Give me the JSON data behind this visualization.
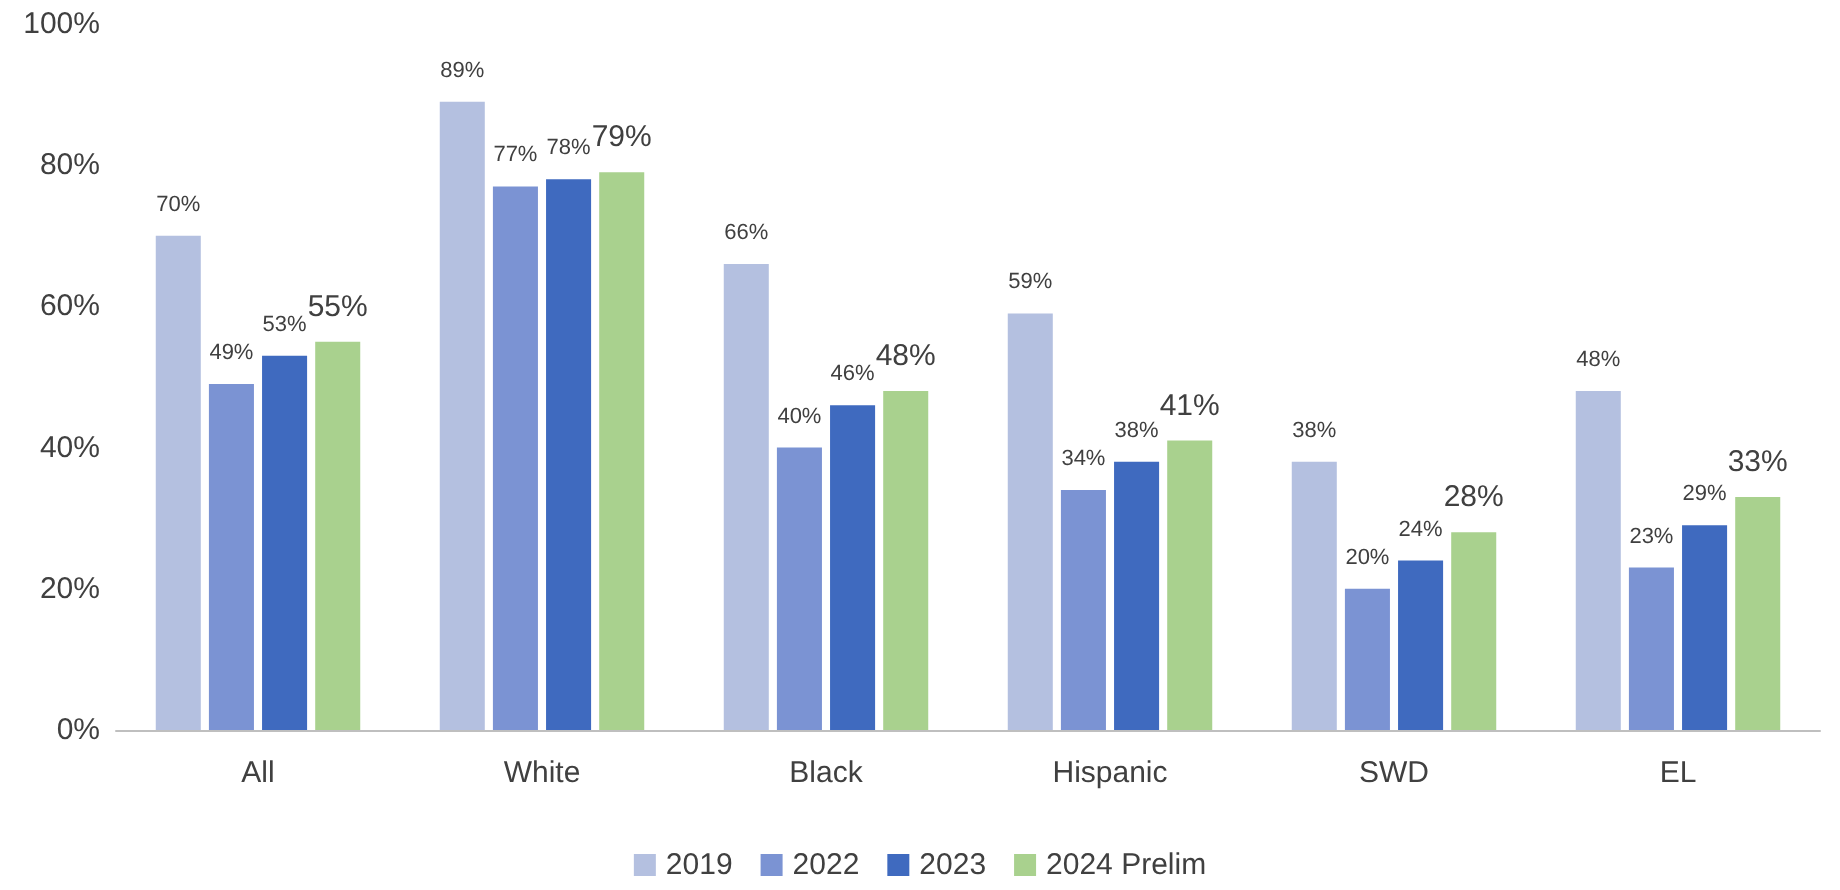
{
  "chart_data": {
    "type": "bar",
    "categories": [
      "All",
      "White",
      "Black",
      "Hispanic",
      "SWD",
      "EL"
    ],
    "series": [
      {
        "name": "2019",
        "color": "#b4c0e0",
        "values": [
          70,
          89,
          66,
          59,
          38,
          48
        ],
        "value_labels": [
          "70%",
          "89%",
          "66%",
          "59%",
          "38%",
          "48%"
        ]
      },
      {
        "name": "2022",
        "color": "#7b93d3",
        "values": [
          49,
          77,
          40,
          34,
          20,
          23
        ],
        "value_labels": [
          "49%",
          "77%",
          "40%",
          "34%",
          "20%",
          "23%"
        ]
      },
      {
        "name": "2023",
        "color": "#3f6abf",
        "values": [
          53,
          78,
          46,
          38,
          24,
          29
        ],
        "value_labels": [
          "53%",
          "78%",
          "46%",
          "38%",
          "24%",
          "29%"
        ]
      },
      {
        "name": "2024 Prelim",
        "color": "#a9d18e",
        "values": [
          55,
          79,
          48,
          41,
          28,
          33
        ],
        "value_labels": [
          "55%",
          "79%",
          "48%",
          "41%",
          "28%",
          "33%"
        ]
      }
    ],
    "ylim": [
      0,
      100
    ],
    "yticks": [
      {
        "value": 0,
        "label": "0%"
      },
      {
        "value": 20,
        "label": "20%"
      },
      {
        "value": 40,
        "label": "40%"
      },
      {
        "value": 60,
        "label": "60%"
      },
      {
        "value": 80,
        "label": "80%"
      },
      {
        "value": 100,
        "label": "100%"
      }
    ],
    "grid": false,
    "legend": "bottom"
  }
}
